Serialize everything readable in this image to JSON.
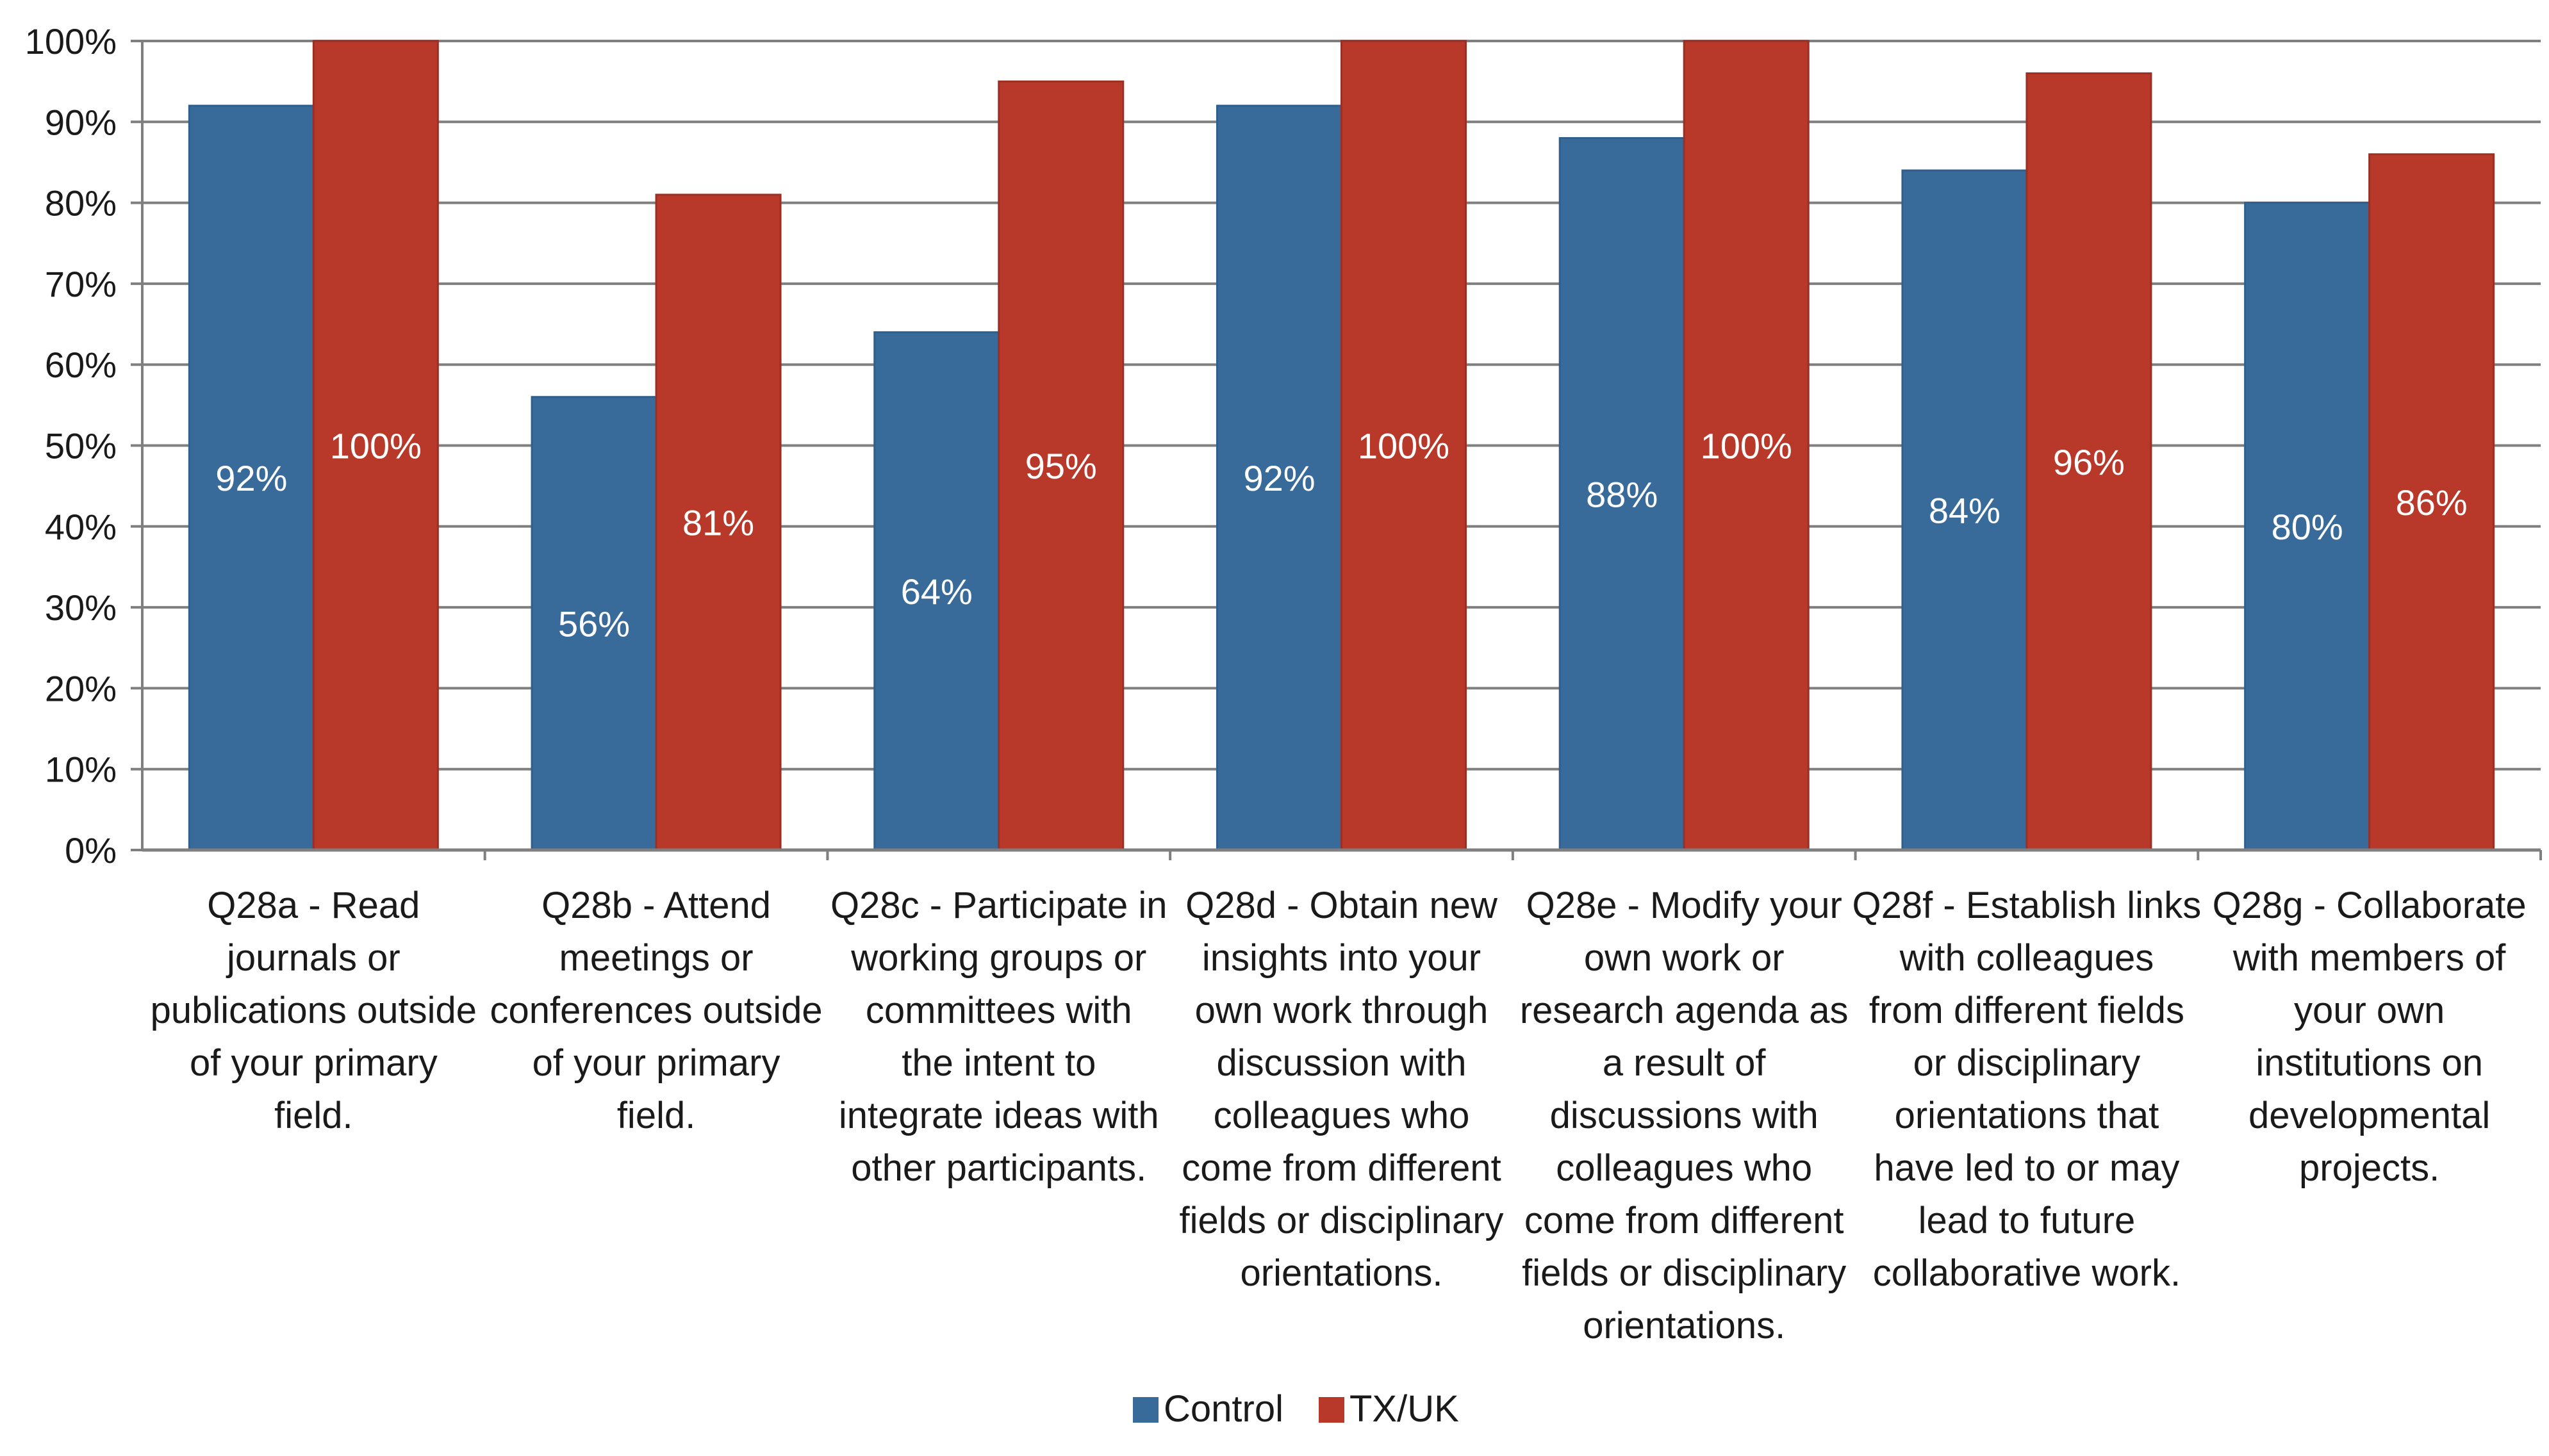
{
  "chart_data": {
    "type": "bar",
    "title": "",
    "xlabel": "",
    "ylabel": "",
    "ylim": [
      0,
      100
    ],
    "yticks": [
      "0%",
      "10%",
      "20%",
      "30%",
      "40%",
      "50%",
      "60%",
      "70%",
      "80%",
      "90%",
      "100%"
    ],
    "grid": true,
    "legend_position": "bottom-center",
    "categories": [
      [
        "Q28a - Read",
        "journals or",
        "publications outside",
        "of your primary",
        "field."
      ],
      [
        "Q28b - Attend",
        "meetings or",
        "conferences outside",
        "of your primary",
        "field."
      ],
      [
        "Q28c - Participate in",
        "working groups or",
        "committees with",
        "the intent to",
        "integrate ideas with",
        "other participants."
      ],
      [
        "Q28d - Obtain new",
        "insights into your",
        "own work through",
        "discussion with",
        "colleagues who",
        "come from different",
        "fields or disciplinary",
        "orientations."
      ],
      [
        "Q28e - Modify your",
        "own work or",
        "research agenda as",
        "a result of",
        "discussions with",
        "colleagues who",
        "come from different",
        "fields or disciplinary",
        "orientations."
      ],
      [
        "Q28f - Establish links",
        "with colleagues",
        "from different fields",
        "or disciplinary",
        "orientations that",
        "have led to or may",
        "lead to future",
        "collaborative work."
      ],
      [
        "Q28g - Collaborate",
        "with members of",
        "your own",
        "institutions on",
        "developmental",
        "projects."
      ]
    ],
    "series": [
      {
        "name": "Control",
        "color": "#386B9A",
        "values": [
          92,
          56,
          64,
          92,
          88,
          84,
          80
        ],
        "labels": [
          "92%",
          "56%",
          "64%",
          "92%",
          "88%",
          "84%",
          "80%"
        ]
      },
      {
        "name": "TX/UK",
        "color": "#B8392A",
        "values": [
          100,
          81,
          95,
          100,
          100,
          96,
          86
        ],
        "labels": [
          "100%",
          "81%",
          "95%",
          "100%",
          "100%",
          "96%",
          "86%"
        ]
      }
    ]
  }
}
